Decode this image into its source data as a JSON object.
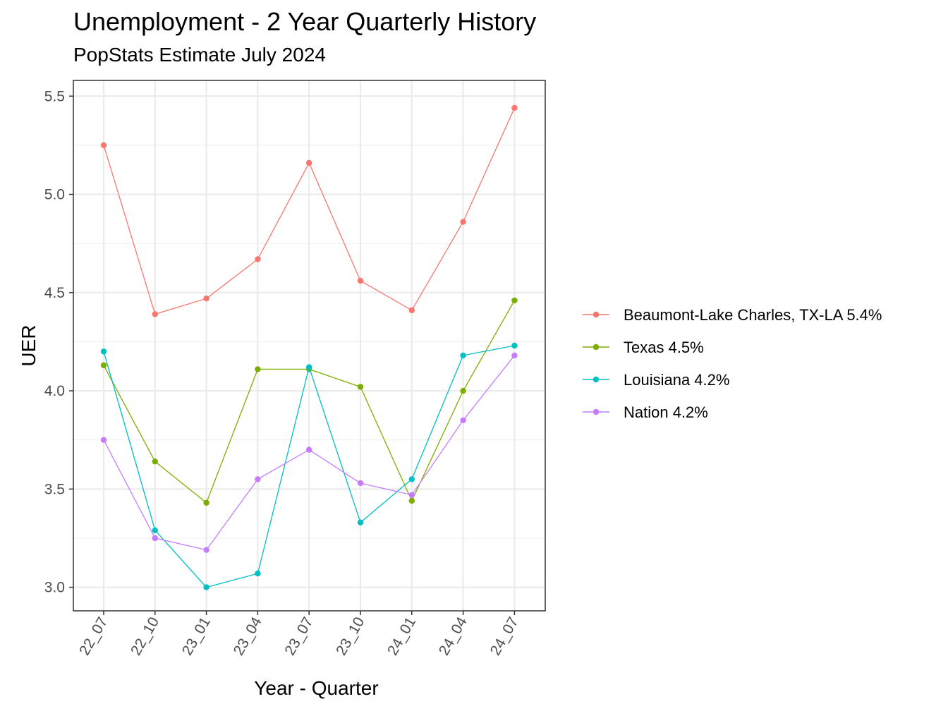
{
  "chart_data": {
    "type": "line",
    "title": "Unemployment - 2 Year Quarterly History",
    "subtitle": "PopStats Estimate July 2024",
    "xlabel": "Year - Quarter",
    "ylabel": "UER",
    "categories": [
      "22_07",
      "22_10",
      "23_01",
      "23_04",
      "23_07",
      "23_10",
      "24_01",
      "24_04",
      "24_07"
    ],
    "ylim": [
      2.88,
      5.58
    ],
    "yticks": [
      "3.0",
      "3.5",
      "4.0",
      "4.5",
      "5.0",
      "5.5"
    ],
    "grid": true,
    "legend_position": "right",
    "series": [
      {
        "name": "Beaumont-Lake Charles, TX-LA 5.4%",
        "color": "#F8766D",
        "values": [
          5.25,
          4.39,
          4.47,
          4.67,
          5.16,
          4.56,
          4.41,
          4.86,
          5.44
        ]
      },
      {
        "name": "Texas 4.5%",
        "color": "#7CAE00",
        "values": [
          4.13,
          3.64,
          3.43,
          4.11,
          4.11,
          4.02,
          3.44,
          4.0,
          4.46
        ]
      },
      {
        "name": "Louisiana 4.2%",
        "color": "#00BFC4",
        "values": [
          4.2,
          3.29,
          3.0,
          3.07,
          4.12,
          3.33,
          3.55,
          4.18,
          4.23
        ]
      },
      {
        "name": "Nation 4.2%",
        "color": "#C77CFF",
        "values": [
          3.75,
          3.25,
          3.19,
          3.55,
          3.7,
          3.53,
          3.47,
          3.85,
          4.18
        ]
      }
    ]
  }
}
